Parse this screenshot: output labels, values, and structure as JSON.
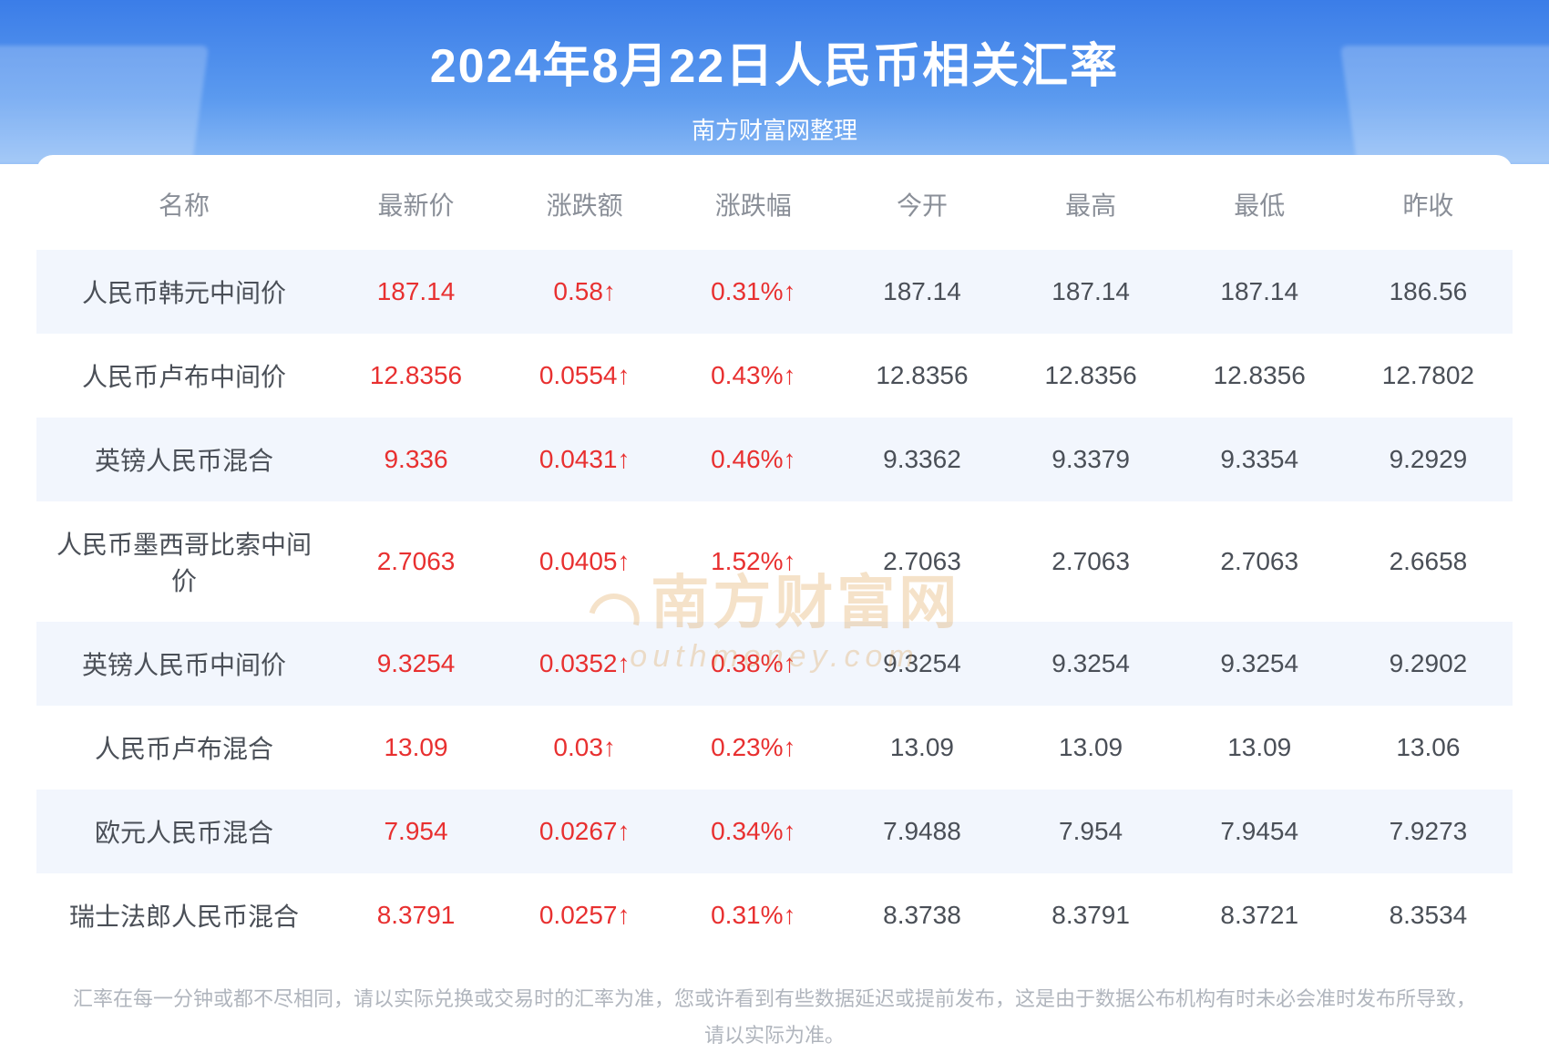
{
  "header": {
    "title": "2024年8月22日人民币相关汇率",
    "subtitle": "南方财富网整理"
  },
  "table": {
    "columns": [
      "名称",
      "最新价",
      "涨跌额",
      "涨跌幅",
      "今开",
      "最高",
      "最低",
      "昨收"
    ],
    "rows": [
      {
        "name": "人民币韩元中间价",
        "latest": "187.14",
        "change_val": "0.58↑",
        "change_pct": "0.31%↑",
        "open": "187.14",
        "high": "187.14",
        "low": "187.14",
        "prev": "186.56",
        "dir": "up"
      },
      {
        "name": "人民币卢布中间价",
        "latest": "12.8356",
        "change_val": "0.0554↑",
        "change_pct": "0.43%↑",
        "open": "12.8356",
        "high": "12.8356",
        "low": "12.8356",
        "prev": "12.7802",
        "dir": "up"
      },
      {
        "name": "英镑人民币混合",
        "latest": "9.336",
        "change_val": "0.0431↑",
        "change_pct": "0.46%↑",
        "open": "9.3362",
        "high": "9.3379",
        "low": "9.3354",
        "prev": "9.2929",
        "dir": "up"
      },
      {
        "name": "人民币墨西哥比索中间价",
        "latest": "2.7063",
        "change_val": "0.0405↑",
        "change_pct": "1.52%↑",
        "open": "2.7063",
        "high": "2.7063",
        "low": "2.7063",
        "prev": "2.6658",
        "dir": "up"
      },
      {
        "name": "英镑人民币中间价",
        "latest": "9.3254",
        "change_val": "0.0352↑",
        "change_pct": "0.38%↑",
        "open": "9.3254",
        "high": "9.3254",
        "low": "9.3254",
        "prev": "9.2902",
        "dir": "up"
      },
      {
        "name": "人民币卢布混合",
        "latest": "13.09",
        "change_val": "0.03↑",
        "change_pct": "0.23%↑",
        "open": "13.09",
        "high": "13.09",
        "low": "13.09",
        "prev": "13.06",
        "dir": "up"
      },
      {
        "name": "欧元人民币混合",
        "latest": "7.954",
        "change_val": "0.0267↑",
        "change_pct": "0.34%↑",
        "open": "7.9488",
        "high": "7.954",
        "low": "7.9454",
        "prev": "7.9273",
        "dir": "up"
      },
      {
        "name": "瑞士法郎人民币混合",
        "latest": "8.3791",
        "change_val": "0.0257↑",
        "change_pct": "0.31%↑",
        "open": "8.3738",
        "high": "8.3791",
        "low": "8.3721",
        "prev": "8.3534",
        "dir": "up"
      }
    ]
  },
  "watermark": {
    "main": "南方财富网",
    "sub": "outhmoney.com"
  },
  "footer": {
    "line1": "汇率在每一分钟或都不尽相同，请以实际兑换或交易时的汇率为准，您或许看到有些数据延迟或提前发布，这是由于数据公布机构有时未必会准时发布所导致，",
    "line2": "请以实际为准。"
  },
  "colors": {
    "up": "#e83030",
    "header_bg_top": "#3b7de8",
    "header_bg_bottom": "#8bbaf5",
    "row_stripe": "#f2f6fd",
    "text_muted": "#8a8f98",
    "text_body": "#4a4f57",
    "watermark": "#d98e2b"
  }
}
